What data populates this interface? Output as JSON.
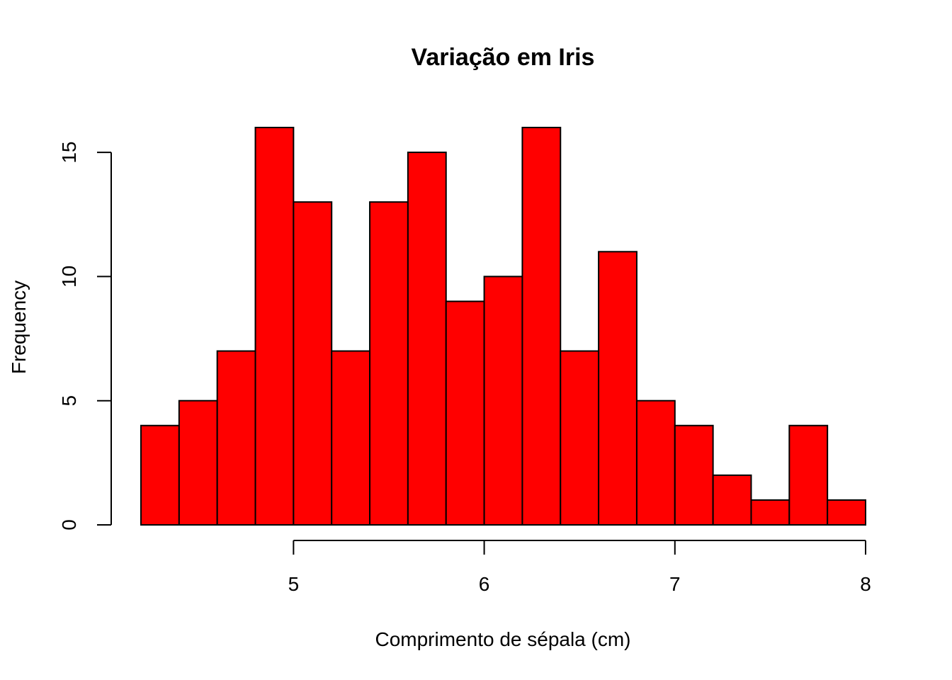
{
  "chart_data": {
    "type": "bar",
    "title": "Variação em Iris",
    "xlabel": "Comprimento de sépala (cm)",
    "ylabel": "Frequency",
    "bin_edges": [
      4.2,
      4.4,
      4.6,
      4.8,
      5.0,
      5.2,
      5.4,
      5.6,
      5.8,
      6.0,
      6.2,
      6.4,
      6.6,
      6.8,
      7.0,
      7.2,
      7.4,
      7.6,
      7.8,
      8.0
    ],
    "values": [
      4,
      5,
      7,
      16,
      13,
      7,
      13,
      15,
      9,
      10,
      16,
      7,
      11,
      5,
      4,
      2,
      1,
      4,
      1
    ],
    "x_ticks": [
      5,
      6,
      7,
      8
    ],
    "y_ticks": [
      0,
      5,
      10,
      15
    ],
    "xlim": [
      4.2,
      8.0
    ],
    "ylim": [
      0,
      16
    ],
    "bar_color": "#ff0000",
    "grid": false,
    "legend": "none"
  }
}
